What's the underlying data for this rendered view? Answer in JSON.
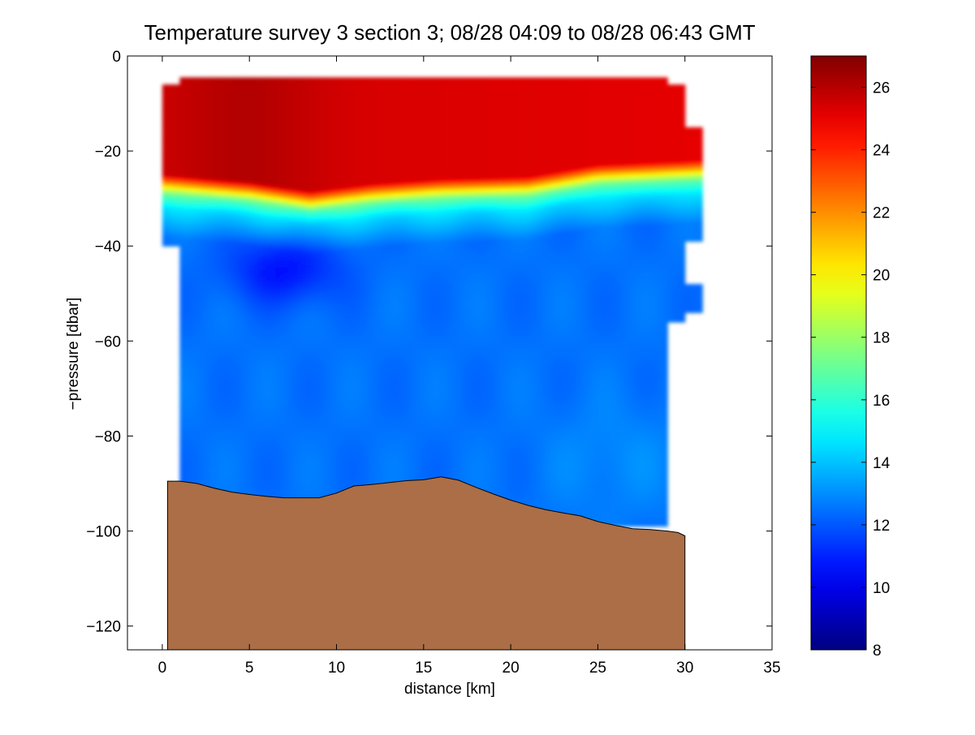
{
  "chart_data": {
    "type": "heatmap",
    "title": "Temperature survey 3 section 3; 08/28 04:09 to 08/28 06:43 GMT",
    "xlabel": "distance [km]",
    "ylabel": "−pressure [dbar]",
    "xlim": [
      -2,
      35
    ],
    "ylim": [
      -125,
      0
    ],
    "x_ticks": [
      0,
      5,
      10,
      15,
      20,
      25,
      30,
      35
    ],
    "x_tick_labels": [
      "0",
      "5",
      "10",
      "15",
      "20",
      "25",
      "30",
      "35"
    ],
    "y_ticks": [
      0,
      -20,
      -40,
      -60,
      -80,
      -100,
      -120
    ],
    "y_tick_labels": [
      "0",
      "−20",
      "−40",
      "−60",
      "−80",
      "−100",
      "−120"
    ],
    "colorbar": {
      "min": 8,
      "max": 27,
      "ticks": [
        8,
        10,
        12,
        14,
        16,
        18,
        20,
        22,
        24,
        26
      ],
      "tick_labels": [
        "8",
        "10",
        "12",
        "14",
        "16",
        "18",
        "20",
        "22",
        "24",
        "26"
      ],
      "colormap": "jet"
    },
    "field": {
      "surface_pressure": -4.5,
      "bottom_pressure": -99,
      "main_x_range": [
        1,
        29
      ],
      "mixed_layer_temp": 25.5,
      "deep_temp": 12.5,
      "thermocline_depth": [
        {
          "x": 0,
          "y": -29
        },
        {
          "x": 5,
          "y": -30.5
        },
        {
          "x": 8.5,
          "y": -32.5
        },
        {
          "x": 12,
          "y": -31
        },
        {
          "x": 16,
          "y": -30
        },
        {
          "x": 21,
          "y": -29.5
        },
        {
          "x": 25,
          "y": -27
        },
        {
          "x": 31,
          "y": -26
        }
      ]
    },
    "bathymetry": {
      "color": "#ab6e47",
      "points": [
        {
          "x": 0.3,
          "y": -89.5
        },
        {
          "x": 1.0,
          "y": -89.5
        },
        {
          "x": 2.0,
          "y": -90.0
        },
        {
          "x": 3.0,
          "y": -91.0
        },
        {
          "x": 4.0,
          "y": -91.8
        },
        {
          "x": 5.0,
          "y": -92.3
        },
        {
          "x": 6.0,
          "y": -92.7
        },
        {
          "x": 7.0,
          "y": -93.0
        },
        {
          "x": 8.0,
          "y": -93.0
        },
        {
          "x": 9.0,
          "y": -93.0
        },
        {
          "x": 10.0,
          "y": -92.0
        },
        {
          "x": 11.0,
          "y": -90.5
        },
        {
          "x": 12.0,
          "y": -90.2
        },
        {
          "x": 13.0,
          "y": -89.8
        },
        {
          "x": 14.0,
          "y": -89.4
        },
        {
          "x": 15.0,
          "y": -89.2
        },
        {
          "x": 16.0,
          "y": -88.6
        },
        {
          "x": 17.0,
          "y": -89.3
        },
        {
          "x": 18.0,
          "y": -90.8
        },
        {
          "x": 19.0,
          "y": -92.2
        },
        {
          "x": 20.0,
          "y": -93.5
        },
        {
          "x": 21.0,
          "y": -94.6
        },
        {
          "x": 22.0,
          "y": -95.5
        },
        {
          "x": 23.0,
          "y": -96.2
        },
        {
          "x": 24.0,
          "y": -96.8
        },
        {
          "x": 25.0,
          "y": -98.0
        },
        {
          "x": 26.0,
          "y": -98.8
        },
        {
          "x": 27.0,
          "y": -99.5
        },
        {
          "x": 28.0,
          "y": -99.7
        },
        {
          "x": 29.0,
          "y": -100.0
        },
        {
          "x": 29.6,
          "y": -100.3
        },
        {
          "x": 30.0,
          "y": -101.0
        }
      ]
    }
  }
}
